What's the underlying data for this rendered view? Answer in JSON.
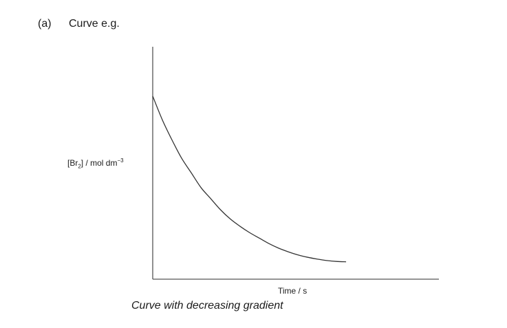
{
  "header": {
    "part": "(a)",
    "title": "Curve e.g."
  },
  "caption": "Curve with decreasing gradient",
  "chart_data": {
    "type": "line",
    "xlabel": "Time / s",
    "ylabel": {
      "main": "[Br",
      "subscript": "2",
      "rest": "] / mol dm",
      "superscript": "−3"
    },
    "grid": false,
    "legend": "none",
    "line_color": "#333333",
    "x": [
      0,
      0.05,
      0.1,
      0.15,
      0.2,
      0.25,
      0.3,
      0.35,
      0.4,
      0.45,
      0.5,
      0.55,
      0.6,
      0.65,
      0.7,
      0.75,
      0.8,
      0.85,
      0.9,
      0.95,
      1.0
    ],
    "y": [
      1.0,
      0.87,
      0.76,
      0.66,
      0.58,
      0.5,
      0.44,
      0.38,
      0.33,
      0.29,
      0.255,
      0.225,
      0.195,
      0.17,
      0.15,
      0.133,
      0.12,
      0.11,
      0.102,
      0.097,
      0.095
    ],
    "xlim": [
      0,
      1.48
    ],
    "ylim": [
      0,
      1.27
    ]
  }
}
